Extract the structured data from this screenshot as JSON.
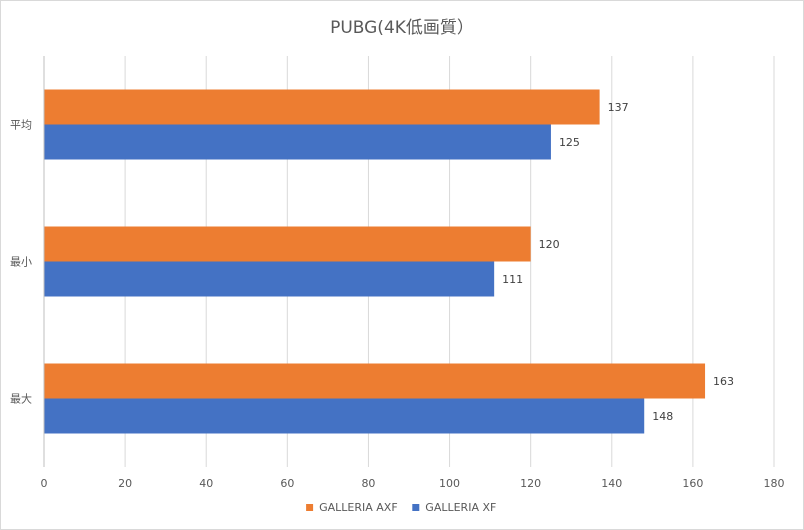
{
  "chart_data": {
    "type": "bar",
    "orientation": "horizontal",
    "title": "PUBG(4K低画質）",
    "categories": [
      "平均",
      "最小",
      "最大"
    ],
    "series": [
      {
        "name": "GALLERIA AXF",
        "color": "#ED7D31",
        "values": [
          137,
          120,
          163
        ]
      },
      {
        "name": "GALLERIA XF",
        "color": "#4472C4",
        "values": [
          125,
          111,
          148
        ]
      }
    ],
    "xlim": [
      0,
      180
    ],
    "xticks": [
      0,
      20,
      40,
      60,
      80,
      100,
      120,
      140,
      160,
      180
    ],
    "xlabel": "",
    "ylabel": "",
    "grid": true,
    "data_labels": true,
    "legend_position": "bottom"
  }
}
